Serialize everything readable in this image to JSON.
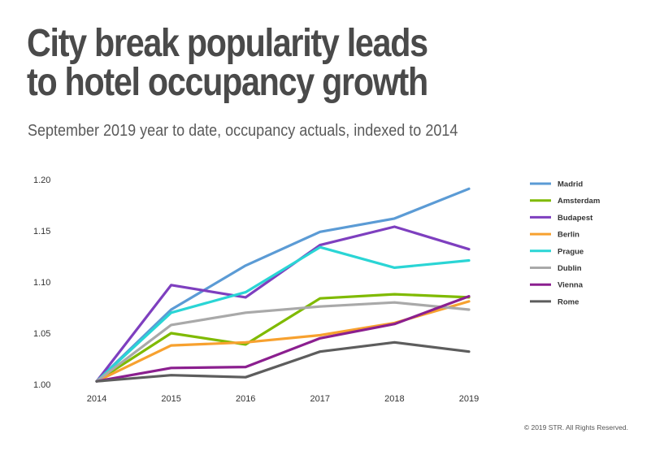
{
  "header": {
    "title_line1": "City break popularity leads",
    "title_line2": "to hotel occupancy growth",
    "subtitle": "September 2019 year to date, occupancy actuals, indexed to 2014"
  },
  "footer": {
    "copyright": "© 2019 STR. All Rights Reserved."
  },
  "chart_data": {
    "type": "line",
    "title": "City break popularity leads to hotel occupancy growth",
    "subtitle": "September 2019 year to date, occupancy actuals, indexed to 2014",
    "xlabel": "",
    "ylabel": "",
    "x": [
      "2014",
      "2015",
      "2016",
      "2017",
      "2018",
      "2019"
    ],
    "ylim": [
      1.0,
      1.2
    ],
    "yticks": [
      "1.00",
      "1.05",
      "1.10",
      "1.15",
      "1.20"
    ],
    "grid": false,
    "legend_position": "right",
    "series": [
      {
        "name": "Madrid",
        "color": "#5b9bd5",
        "values": [
          1.003,
          1.073,
          1.116,
          1.149,
          1.162,
          1.191
        ]
      },
      {
        "name": "Amsterdam",
        "color": "#7fba00",
        "values": [
          1.003,
          1.05,
          1.039,
          1.084,
          1.088,
          1.085
        ]
      },
      {
        "name": "Budapest",
        "color": "#7e3fbf",
        "values": [
          1.003,
          1.097,
          1.085,
          1.136,
          1.154,
          1.132
        ]
      },
      {
        "name": "Berlin",
        "color": "#f7a12f",
        "values": [
          1.003,
          1.038,
          1.041,
          1.048,
          1.06,
          1.081
        ]
      },
      {
        "name": "Prague",
        "color": "#2ad5d5",
        "values": [
          1.003,
          1.07,
          1.09,
          1.134,
          1.114,
          1.121
        ]
      },
      {
        "name": "Dublin",
        "color": "#a9a9a9",
        "values": [
          1.003,
          1.058,
          1.07,
          1.076,
          1.08,
          1.073
        ]
      },
      {
        "name": "Vienna",
        "color": "#8b1f8f",
        "values": [
          1.003,
          1.016,
          1.017,
          1.045,
          1.059,
          1.086
        ]
      },
      {
        "name": "Rome",
        "color": "#5d5d5d",
        "values": [
          1.003,
          1.009,
          1.007,
          1.032,
          1.041,
          1.032
        ]
      }
    ]
  }
}
